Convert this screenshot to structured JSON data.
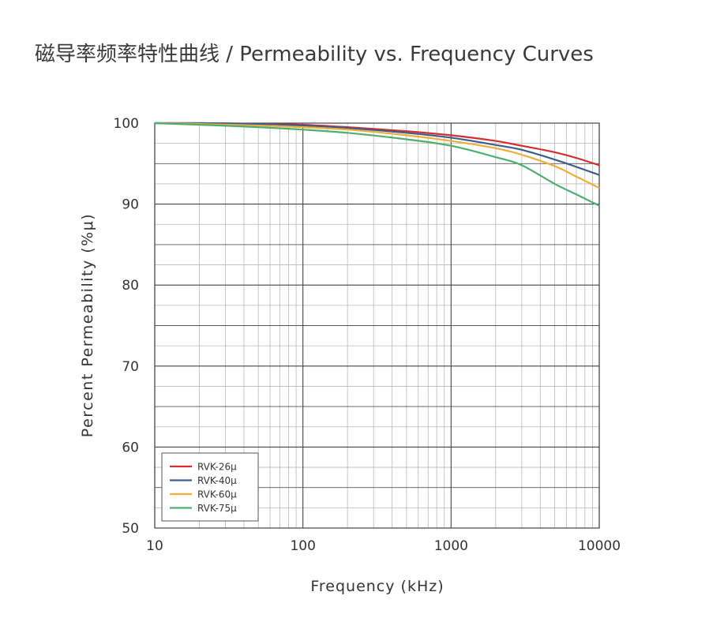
{
  "chart_data": {
    "type": "line",
    "title": "磁导率频率特性曲线 / Permeability vs. Frequency Curves",
    "xlabel": "Frequency (kHz)",
    "ylabel": "Percent Permeability (%μ)",
    "xscale": "log",
    "xlim": [
      10,
      10000
    ],
    "ylim": [
      50,
      100
    ],
    "x_ticks": [
      "10",
      "100",
      "1000",
      "10000"
    ],
    "y_ticks": [
      "50",
      "60",
      "70",
      "80",
      "90",
      "100"
    ],
    "grid": true,
    "legend_position": "bottom-left",
    "x": [
      10,
      20,
      50,
      100,
      200,
      500,
      1000,
      2000,
      3000,
      5000,
      7000,
      10000
    ],
    "series": [
      {
        "name": "RVK-26μ",
        "color": "#d32f2f",
        "values": [
          100.0,
          100.0,
          99.9,
          99.8,
          99.5,
          99.0,
          98.5,
          97.8,
          97.2,
          96.4,
          95.7,
          94.8
        ]
      },
      {
        "name": "RVK-40μ",
        "color": "#3b5e8c",
        "values": [
          100.0,
          100.0,
          99.9,
          99.7,
          99.4,
          98.8,
          98.2,
          97.3,
          96.7,
          95.5,
          94.6,
          93.6
        ]
      },
      {
        "name": "RVK-60μ",
        "color": "#f0ad3a",
        "values": [
          100.0,
          99.9,
          99.7,
          99.5,
          99.2,
          98.5,
          97.8,
          96.9,
          96.1,
          94.7,
          93.4,
          92.0
        ]
      },
      {
        "name": "RVK-75μ",
        "color": "#4caf6e",
        "values": [
          100.0,
          99.8,
          99.5,
          99.2,
          98.8,
          98.0,
          97.2,
          95.8,
          94.8,
          92.5,
          91.2,
          89.8
        ]
      }
    ]
  }
}
